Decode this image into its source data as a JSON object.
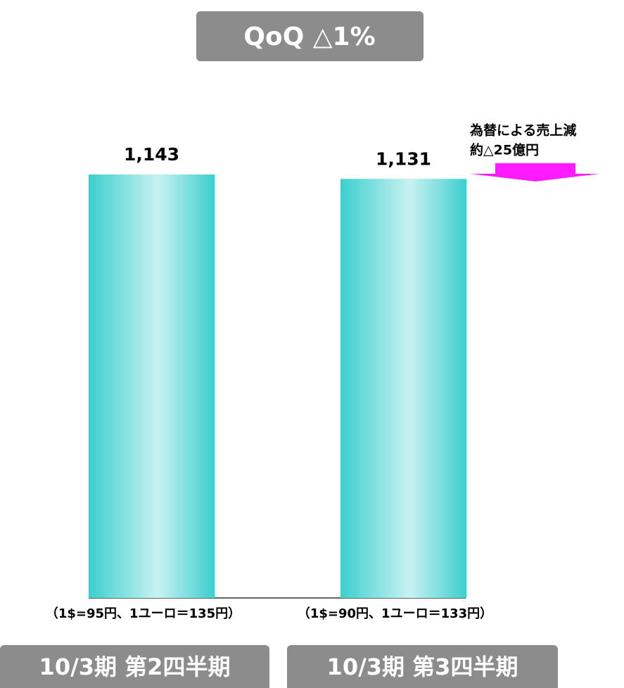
{
  "chart_data": {
    "type": "bar",
    "title": "QoQ  △1%",
    "categories": [
      "10/3期 第2四半期",
      "10/3期 第3四半期"
    ],
    "values": [
      1143,
      1131
    ],
    "value_labels": [
      "1,143",
      "1,131"
    ],
    "rate_notes": [
      "（1$=95円、1ユーロ＝135円）",
      "（1$=90円、1ユーロ＝133円）"
    ],
    "annotation": [
      "為替による売上減",
      "約△25億円"
    ],
    "color": "#3ccfcf",
    "ylim": [
      0,
      1143
    ]
  }
}
